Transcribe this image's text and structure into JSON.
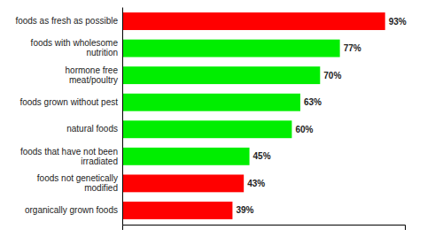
{
  "chart_data": {
    "type": "bar",
    "orientation": "horizontal",
    "categories": [
      "organically grown foods",
      "foods not genetically\nmodified",
      "foods that have not been\nirradiated",
      "natural foods",
      "foods grown without pest",
      "hormone free\nmeat/poultry",
      "foods with wholesome\nnutrition",
      "foods as fresh as possible"
    ],
    "values": [
      39,
      43,
      45,
      60,
      63,
      70,
      77,
      93
    ],
    "value_labels": [
      "39%",
      "43%",
      "45%",
      "60%",
      "63%",
      "70%",
      "77%",
      "93%"
    ],
    "colors": [
      "#ff0000",
      "#ff0000",
      "#00ee00",
      "#00ee00",
      "#00ee00",
      "#00ee00",
      "#00ee00",
      "#ff0000"
    ],
    "xlim": [
      0,
      100
    ],
    "xticks": [],
    "data_labels": true,
    "tick_labels": "y",
    "grid": false
  }
}
